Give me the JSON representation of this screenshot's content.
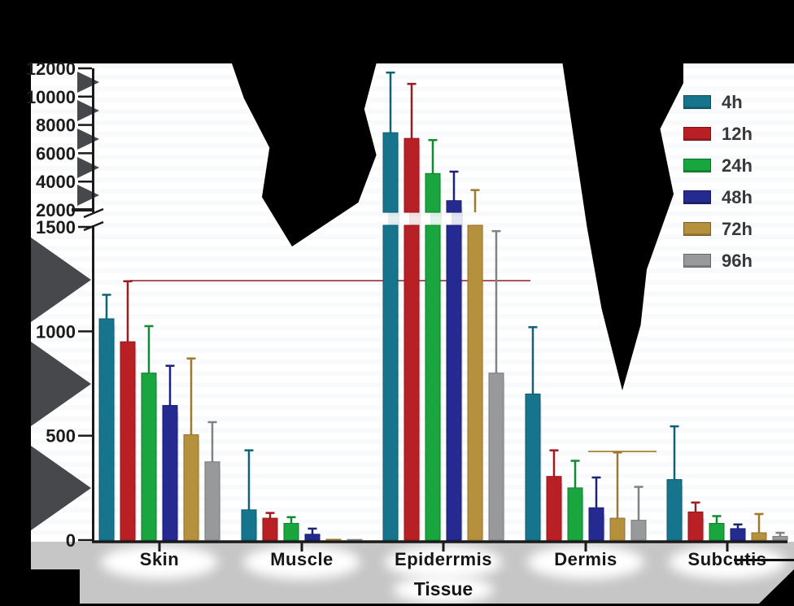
{
  "figure": {
    "page_background": "#000000",
    "plot_background": "#ffffff",
    "footer_band_color": "#c6c6c6",
    "axis_color": "#1a1a1a",
    "tick_label_color": "#1b1b1b",
    "legend_text_color": "#37383a"
  },
  "chart_data": {
    "type": "bar",
    "title": "",
    "xlabel": "Tissue",
    "ylabel": "",
    "grid": false,
    "legend_position": "top-right",
    "axis_break": {
      "lower_range": [
        0,
        1500
      ],
      "upper_range": [
        2000,
        12000
      ]
    },
    "lower_ticks": [
      "0",
      "500",
      "1000",
      "1500"
    ],
    "lower_tick_values": [
      0,
      500,
      1000,
      1500
    ],
    "upper_ticks": [
      "2000",
      "4000",
      "6000",
      "8000",
      "10000",
      "12000"
    ],
    "upper_tick_values": [
      2000,
      4000,
      6000,
      8000,
      10000,
      12000
    ],
    "categories": [
      "Skin",
      "Muscle",
      "Epiderrmis",
      "Dermis",
      "Subcutis"
    ],
    "series": [
      {
        "name": "4h",
        "color": "#16748c",
        "edge": "#0d5a6e",
        "error_color": "#0f6277",
        "values": [
          1060,
          145,
          7450,
          700,
          290
        ],
        "errors_top": [
          1175,
          430,
          11700,
          1020,
          545
        ]
      },
      {
        "name": "12h",
        "color": "#b82025",
        "edge": "#8f191d",
        "error_color": "#9c1b20",
        "values": [
          950,
          105,
          7050,
          305,
          135
        ],
        "errors_top": [
          1240,
          130,
          10900,
          430,
          180
        ]
      },
      {
        "name": "24h",
        "color": "#1aa63f",
        "edge": "#0f7a2e",
        "error_color": "#128a34",
        "values": [
          800,
          80,
          4570,
          250,
          80
        ],
        "errors_top": [
          1025,
          110,
          6930,
          380,
          115
        ]
      },
      {
        "name": "48h",
        "color": "#252a90",
        "edge": "#1a1e6e",
        "error_color": "#1d2277",
        "values": [
          645,
          28,
          2650,
          155,
          55
        ],
        "errors_top": [
          835,
          55,
          4700,
          300,
          75
        ]
      },
      {
        "name": "72h",
        "color": "#b6913d",
        "edge": "#93702c",
        "error_color": "#9c7a30",
        "values": [
          505,
          4,
          1800,
          105,
          35
        ],
        "errors_top": [
          870,
          null,
          3400,
          420,
          125
        ]
      },
      {
        "name": "96h",
        "color": "#97999b",
        "edge": "#76787a",
        "error_color": "#808284",
        "values": [
          375,
          3,
          800,
          95,
          18
        ],
        "errors_top": [
          565,
          null,
          1480,
          255,
          35
        ]
      }
    ]
  }
}
